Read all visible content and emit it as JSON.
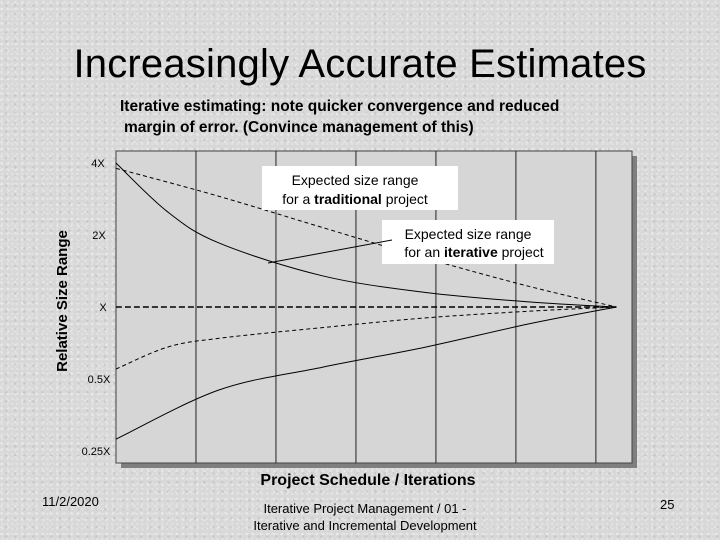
{
  "slide": {
    "title": "Increasingly Accurate Estimates",
    "subtitle_line1": "Iterative estimating: note quicker convergence and reduced",
    "subtitle_line2": "margin of error.  (Convince management of this)",
    "footer_line1": "Iterative Project Management / 01 -",
    "footer_line2": "Iterative and Incremental Development",
    "date": "11/2/2020",
    "page_number": "25"
  },
  "chart_data": {
    "type": "line",
    "title": "",
    "xlabel": "Project Schedule / Iterations",
    "ylabel": "Relative Size Range",
    "y_scale": "log2",
    "y_ticks": [
      {
        "label": "4X",
        "value": 4
      },
      {
        "label": "2X",
        "value": 2
      },
      {
        "label": "X",
        "value": 1
      },
      {
        "label": "0.5X",
        "value": 0.5
      },
      {
        "label": "0.25X",
        "value": 0.25
      }
    ],
    "ylim": [
      0.25,
      4
    ],
    "xlim": [
      0,
      1
    ],
    "iteration_gridlines": [
      0.155,
      0.31,
      0.465,
      0.62,
      0.775,
      0.93
    ],
    "series": [
      {
        "name": "traditional upper",
        "style": "dashed",
        "points": [
          [
            0,
            3.8
          ],
          [
            0.2,
            2.9
          ],
          [
            0.4,
            2.15
          ],
          [
            0.6,
            1.6
          ],
          [
            0.8,
            1.22
          ],
          [
            0.97,
            1.0
          ]
        ]
      },
      {
        "name": "traditional lower",
        "style": "solid",
        "points": [
          [
            0,
            0.28
          ],
          [
            0.2,
            0.45
          ],
          [
            0.4,
            0.56
          ],
          [
            0.6,
            0.68
          ],
          [
            0.8,
            0.85
          ],
          [
            0.97,
            1.0
          ]
        ]
      },
      {
        "name": "iterative upper",
        "style": "solid",
        "points": [
          [
            0,
            4.0
          ],
          [
            0.1,
            2.5
          ],
          [
            0.2,
            1.85
          ],
          [
            0.4,
            1.35
          ],
          [
            0.6,
            1.15
          ],
          [
            0.8,
            1.05
          ],
          [
            0.97,
            1.0
          ]
        ]
      },
      {
        "name": "iterative lower",
        "style": "dashed",
        "points": [
          [
            0,
            0.55
          ],
          [
            0.1,
            0.68
          ],
          [
            0.2,
            0.74
          ],
          [
            0.4,
            0.82
          ],
          [
            0.6,
            0.9
          ],
          [
            0.8,
            0.96
          ],
          [
            0.97,
            1.0
          ]
        ]
      },
      {
        "name": "estimate baseline",
        "style": "dashed-bold",
        "points": [
          [
            0,
            1.0
          ],
          [
            0.97,
            1.0
          ]
        ]
      }
    ],
    "annotations": [
      {
        "id": "traditional",
        "line1": "Expected size range",
        "line2_pre": "for a ",
        "line2_bold": "traditional",
        "line2_post": " project"
      },
      {
        "id": "iterative",
        "line1": "Expected size range",
        "line2_pre": "for an ",
        "line2_bold": "iterative",
        "line2_post": " project"
      }
    ]
  }
}
